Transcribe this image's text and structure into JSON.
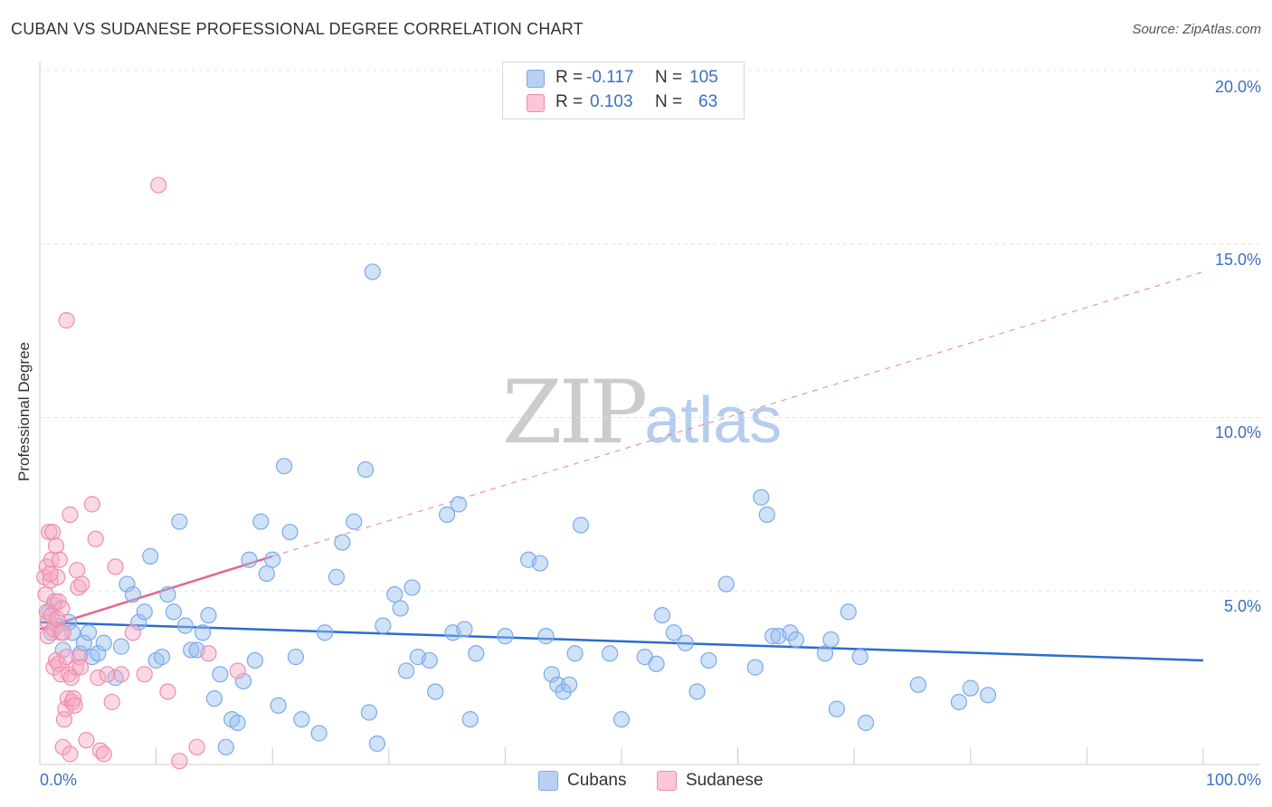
{
  "title": "CUBAN VS SUDANESE PROFESSIONAL DEGREE CORRELATION CHART",
  "source": "Source: ZipAtlas.com",
  "watermark": {
    "zip": "ZIP",
    "atlas": "atlas"
  },
  "stats": {
    "cubans": {
      "r_label": "R =",
      "r_value": "-0.117",
      "n_label": "N =",
      "n_value": "105",
      "color": "#7baae8"
    },
    "sudanese": {
      "r_label": "R =",
      "r_value": "0.103",
      "n_label": "N =",
      "n_value": "63",
      "color": "#f08cad"
    }
  },
  "legend": {
    "cubans": "Cubans",
    "sudanese": "Sudanese"
  },
  "chart_data": {
    "type": "scatter",
    "title": "CUBAN VS SUDANESE PROFESSIONAL DEGREE CORRELATION CHART",
    "xlabel": "",
    "ylabel": "Professional Degree",
    "xlim": [
      0,
      100
    ],
    "ylim": [
      0,
      20
    ],
    "x_tick_labels": [
      "0.0%",
      "100.0%"
    ],
    "y_ticks": [
      5,
      10,
      15,
      20
    ],
    "y_tick_labels": [
      "5.0%",
      "10.0%",
      "15.0%",
      "20.0%"
    ],
    "grid": true,
    "series": [
      {
        "name": "Cubans",
        "color": "#7baae8",
        "line_color": "#2a6dd0",
        "trend": {
          "x": [
            0,
            100
          ],
          "y": [
            4.1,
            3.0
          ],
          "dashed_extension": false
        },
        "points": [
          [
            0.8,
            4.4
          ],
          [
            1.0,
            3.8
          ],
          [
            1.2,
            4.6
          ],
          [
            1.5,
            4.0
          ],
          [
            2.0,
            3.3
          ],
          [
            2.5,
            4.1
          ],
          [
            2.8,
            3.8
          ],
          [
            3.5,
            3.2
          ],
          [
            3.8,
            3.5
          ],
          [
            4.2,
            3.8
          ],
          [
            4.5,
            3.1
          ],
          [
            5.0,
            3.2
          ],
          [
            5.5,
            3.5
          ],
          [
            6.5,
            2.5
          ],
          [
            7.0,
            3.4
          ],
          [
            7.5,
            5.2
          ],
          [
            8.0,
            4.9
          ],
          [
            8.5,
            4.1
          ],
          [
            9.0,
            4.4
          ],
          [
            9.5,
            6.0
          ],
          [
            10.0,
            3.0
          ],
          [
            10.5,
            3.1
          ],
          [
            11.0,
            4.9
          ],
          [
            11.5,
            4.4
          ],
          [
            12.0,
            7.0
          ],
          [
            12.5,
            4.0
          ],
          [
            13.0,
            3.3
          ],
          [
            13.5,
            3.3
          ],
          [
            14.0,
            3.8
          ],
          [
            14.5,
            4.3
          ],
          [
            15.0,
            1.9
          ],
          [
            15.5,
            2.6
          ],
          [
            16.0,
            0.5
          ],
          [
            16.5,
            1.3
          ],
          [
            17.0,
            1.2
          ],
          [
            17.5,
            2.4
          ],
          [
            18.0,
            5.9
          ],
          [
            18.5,
            3.0
          ],
          [
            19.0,
            7.0
          ],
          [
            19.5,
            5.5
          ],
          [
            20.0,
            5.9
          ],
          [
            20.5,
            1.7
          ],
          [
            21.0,
            8.6
          ],
          [
            21.5,
            6.7
          ],
          [
            22.0,
            3.1
          ],
          [
            22.5,
            1.3
          ],
          [
            24.0,
            0.9
          ],
          [
            24.5,
            3.8
          ],
          [
            25.5,
            5.4
          ],
          [
            26.0,
            6.4
          ],
          [
            27.0,
            7.0
          ],
          [
            28.0,
            8.5
          ],
          [
            28.3,
            1.5
          ],
          [
            28.6,
            14.2
          ],
          [
            29.0,
            0.6
          ],
          [
            29.5,
            4.0
          ],
          [
            30.5,
            4.9
          ],
          [
            31.0,
            4.5
          ],
          [
            31.5,
            2.7
          ],
          [
            32.0,
            5.1
          ],
          [
            32.5,
            3.1
          ],
          [
            33.5,
            3.0
          ],
          [
            34.0,
            2.1
          ],
          [
            35.0,
            7.2
          ],
          [
            35.5,
            3.8
          ],
          [
            36.0,
            7.5
          ],
          [
            36.5,
            3.9
          ],
          [
            37.0,
            1.3
          ],
          [
            37.5,
            3.2
          ],
          [
            40.0,
            3.7
          ],
          [
            42.0,
            5.9
          ],
          [
            43.0,
            5.8
          ],
          [
            43.5,
            3.7
          ],
          [
            44.0,
            2.6
          ],
          [
            44.5,
            2.3
          ],
          [
            45.0,
            2.1
          ],
          [
            45.5,
            2.3
          ],
          [
            46.0,
            3.2
          ],
          [
            46.5,
            6.9
          ],
          [
            49.0,
            3.2
          ],
          [
            50.0,
            1.3
          ],
          [
            52.0,
            3.1
          ],
          [
            53.0,
            2.9
          ],
          [
            53.5,
            4.3
          ],
          [
            54.5,
            3.8
          ],
          [
            55.5,
            3.5
          ],
          [
            56.5,
            2.1
          ],
          [
            57.5,
            3.0
          ],
          [
            59.0,
            5.2
          ],
          [
            61.5,
            2.8
          ],
          [
            62.0,
            7.7
          ],
          [
            62.5,
            7.2
          ],
          [
            63.0,
            3.7
          ],
          [
            63.5,
            3.7
          ],
          [
            64.5,
            3.8
          ],
          [
            65.0,
            3.6
          ],
          [
            67.5,
            3.2
          ],
          [
            68.0,
            3.6
          ],
          [
            68.5,
            1.6
          ],
          [
            69.5,
            4.4
          ],
          [
            70.5,
            3.1
          ],
          [
            71.0,
            1.2
          ],
          [
            75.5,
            2.3
          ],
          [
            79.0,
            1.8
          ],
          [
            80.0,
            2.2
          ],
          [
            81.5,
            2.0
          ]
        ]
      },
      {
        "name": "Sudanese",
        "color": "#f08cad",
        "line_color": "#e8638e",
        "trend": {
          "x": [
            0,
            20
          ],
          "y": [
            3.9,
            6.0
          ],
          "dashed_extension": true,
          "extension_to": [
            100,
            14.2
          ]
        },
        "points": [
          [
            0.4,
            5.4
          ],
          [
            0.5,
            4.9
          ],
          [
            0.6,
            4.4
          ],
          [
            0.6,
            5.7
          ],
          [
            0.7,
            3.7
          ],
          [
            0.7,
            4.1
          ],
          [
            0.8,
            6.7
          ],
          [
            0.9,
            5.3
          ],
          [
            1.0,
            4.3
          ],
          [
            1.0,
            5.9
          ],
          [
            1.1,
            6.7
          ],
          [
            1.2,
            2.8
          ],
          [
            1.2,
            3.9
          ],
          [
            1.3,
            4.7
          ],
          [
            1.4,
            6.3
          ],
          [
            1.4,
            3.0
          ],
          [
            1.5,
            5.4
          ],
          [
            1.5,
            4.2
          ],
          [
            1.6,
            2.9
          ],
          [
            1.6,
            4.7
          ],
          [
            1.7,
            5.9
          ],
          [
            1.8,
            3.8
          ],
          [
            1.8,
            2.6
          ],
          [
            1.9,
            4.5
          ],
          [
            2.0,
            0.5
          ],
          [
            2.0,
            3.8
          ],
          [
            2.1,
            1.3
          ],
          [
            2.2,
            1.6
          ],
          [
            2.3,
            12.8
          ],
          [
            2.3,
            3.1
          ],
          [
            2.4,
            1.9
          ],
          [
            2.5,
            2.6
          ],
          [
            2.6,
            0.3
          ],
          [
            2.6,
            7.2
          ],
          [
            2.7,
            2.5
          ],
          [
            2.8,
            1.8
          ],
          [
            2.9,
            1.9
          ],
          [
            3.0,
            1.7
          ],
          [
            3.1,
            2.8
          ],
          [
            3.2,
            5.6
          ],
          [
            3.3,
            5.1
          ],
          [
            3.4,
            3.1
          ],
          [
            3.5,
            2.8
          ],
          [
            3.6,
            5.2
          ],
          [
            4.0,
            0.7
          ],
          [
            4.5,
            7.5
          ],
          [
            4.8,
            6.5
          ],
          [
            5.0,
            2.5
          ],
          [
            5.2,
            0.4
          ],
          [
            5.5,
            0.3
          ],
          [
            5.8,
            2.6
          ],
          [
            6.2,
            1.8
          ],
          [
            6.5,
            5.7
          ],
          [
            7.0,
            2.6
          ],
          [
            8.0,
            3.8
          ],
          [
            9.0,
            2.6
          ],
          [
            10.2,
            16.7
          ],
          [
            11.0,
            2.1
          ],
          [
            12.0,
            0.1
          ],
          [
            13.5,
            0.5
          ],
          [
            14.5,
            3.2
          ],
          [
            17.0,
            2.7
          ],
          [
            0.9,
            5.5
          ]
        ]
      }
    ]
  }
}
